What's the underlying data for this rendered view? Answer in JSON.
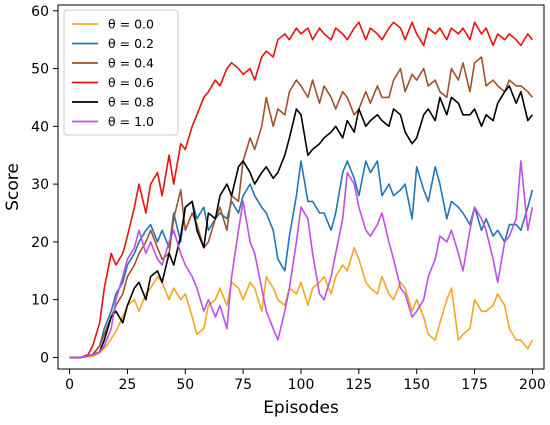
{
  "chart_data": {
    "type": "line",
    "title": "",
    "xlabel": "Episodes",
    "ylabel": "Score",
    "xlim": [
      -5,
      205
    ],
    "ylim": [
      -2,
      61
    ],
    "xticks": [
      0,
      25,
      50,
      75,
      100,
      125,
      150,
      175,
      200
    ],
    "yticks": [
      0,
      10,
      20,
      30,
      40,
      50,
      60
    ],
    "grid": false,
    "legend_position": "top-left",
    "series": [
      {
        "name": "θ = 0.0",
        "color": "#f5a623",
        "x": [
          0,
          5,
          10,
          13,
          16,
          20,
          23,
          25,
          28,
          30,
          33,
          35,
          38,
          40,
          43,
          45,
          48,
          50,
          53,
          55,
          58,
          60,
          63,
          65,
          68,
          70,
          73,
          75,
          78,
          80,
          83,
          85,
          88,
          90,
          93,
          95,
          98,
          100,
          103,
          105,
          108,
          110,
          113,
          115,
          118,
          120,
          123,
          125,
          128,
          130,
          133,
          135,
          138,
          140,
          143,
          145,
          148,
          150,
          153,
          155,
          158,
          160,
          163,
          165,
          168,
          170,
          173,
          175,
          178,
          180,
          183,
          185,
          188,
          190,
          193,
          195,
          198,
          200
        ],
        "y": [
          0,
          0,
          0.2,
          0.8,
          2,
          4.5,
          7,
          9,
          10,
          8,
          11,
          12,
          14,
          13,
          10,
          12,
          10,
          11,
          7,
          4,
          5,
          9,
          10,
          12,
          9,
          13,
          12,
          10,
          13,
          12,
          8,
          14,
          12,
          10,
          9,
          12,
          11,
          13,
          9,
          12,
          13,
          14,
          11,
          14,
          16,
          15,
          19,
          17,
          13,
          12,
          11,
          14,
          11,
          10,
          13,
          12,
          8,
          10,
          7,
          4,
          3,
          6,
          10,
          12,
          3,
          4,
          5,
          10,
          8,
          8,
          9,
          11,
          9,
          5,
          3,
          3,
          1.5,
          3
        ]
      },
      {
        "name": "θ = 0.2",
        "color": "#1f77b4",
        "x": [
          0,
          5,
          10,
          13,
          15,
          18,
          20,
          23,
          25,
          28,
          30,
          33,
          35,
          38,
          40,
          43,
          45,
          48,
          50,
          53,
          55,
          58,
          60,
          63,
          65,
          68,
          70,
          73,
          75,
          78,
          80,
          83,
          85,
          88,
          90,
          93,
          95,
          98,
          100,
          103,
          105,
          108,
          110,
          113,
          115,
          118,
          120,
          123,
          125,
          128,
          130,
          133,
          135,
          138,
          140,
          143,
          145,
          148,
          150,
          153,
          155,
          158,
          160,
          163,
          165,
          168,
          170,
          173,
          175,
          178,
          180,
          183,
          185,
          188,
          190,
          193,
          195,
          198,
          200
        ],
        "y": [
          0,
          0,
          0.5,
          2,
          5,
          8,
          11,
          13,
          16,
          18,
          20,
          22,
          23,
          20,
          22,
          19,
          25,
          20,
          26,
          27,
          24,
          26,
          22,
          24,
          25,
          24,
          27,
          25,
          28,
          30,
          28,
          26,
          25,
          22,
          17,
          15,
          21,
          28,
          34,
          27,
          27,
          25,
          25,
          22,
          25,
          32,
          34,
          31,
          28,
          34,
          32,
          34,
          28,
          30,
          28,
          29,
          30,
          24,
          33,
          29,
          27,
          33,
          30,
          24,
          27,
          26,
          25,
          23,
          26,
          22,
          24,
          21,
          22,
          20,
          23,
          23,
          22,
          26,
          29
        ]
      },
      {
        "name": "θ = 0.4",
        "color": "#a0522d",
        "x": [
          0,
          5,
          10,
          13,
          15,
          18,
          20,
          23,
          25,
          28,
          30,
          33,
          35,
          38,
          40,
          43,
          45,
          48,
          50,
          53,
          55,
          58,
          60,
          63,
          65,
          68,
          70,
          73,
          75,
          78,
          80,
          83,
          85,
          88,
          90,
          93,
          95,
          98,
          100,
          103,
          105,
          108,
          110,
          113,
          115,
          118,
          120,
          123,
          125,
          128,
          130,
          133,
          135,
          138,
          140,
          143,
          145,
          148,
          150,
          153,
          155,
          158,
          160,
          163,
          165,
          168,
          170,
          173,
          175,
          178,
          180,
          183,
          185,
          188,
          190,
          193,
          195,
          198,
          200
        ],
        "y": [
          0,
          0,
          0.5,
          2,
          4,
          7,
          9,
          11,
          14,
          16,
          18,
          20,
          22,
          19,
          17,
          18,
          24,
          29,
          22,
          25,
          23,
          19,
          20,
          24,
          26,
          22,
          28,
          27,
          34,
          38,
          36,
          40,
          45,
          40,
          43,
          42,
          46,
          48,
          47,
          45,
          48,
          44,
          47,
          45,
          43,
          46,
          45,
          42,
          43,
          46,
          44,
          47,
          45,
          45,
          48,
          50,
          46,
          49,
          48,
          50,
          47,
          48,
          46,
          45,
          50,
          48,
          51,
          46,
          51,
          52,
          47,
          48,
          47,
          46,
          48,
          47,
          47,
          46,
          45
        ]
      },
      {
        "name": "θ = 0.6",
        "color": "#e8130f",
        "x": [
          0,
          5,
          8,
          10,
          13,
          15,
          18,
          20,
          23,
          25,
          28,
          30,
          33,
          35,
          38,
          40,
          43,
          45,
          48,
          50,
          53,
          55,
          58,
          60,
          63,
          65,
          68,
          70,
          73,
          75,
          78,
          80,
          83,
          85,
          88,
          90,
          93,
          95,
          98,
          100,
          103,
          105,
          108,
          110,
          113,
          115,
          118,
          120,
          123,
          125,
          128,
          130,
          133,
          135,
          138,
          140,
          143,
          145,
          148,
          150,
          153,
          155,
          158,
          160,
          163,
          165,
          168,
          170,
          173,
          175,
          178,
          180,
          183,
          185,
          188,
          190,
          193,
          195,
          198,
          200
        ],
        "y": [
          0,
          0,
          0.5,
          2,
          6,
          12,
          18,
          16,
          18,
          21,
          26,
          30,
          25,
          30,
          32,
          28,
          35,
          30,
          37,
          36,
          40,
          42,
          45,
          46,
          48,
          47,
          50,
          51,
          50,
          49,
          50,
          48,
          52,
          53,
          52,
          55,
          56,
          55,
          57,
          56,
          57,
          55,
          57,
          56,
          55,
          57,
          56,
          55,
          57,
          58,
          55,
          57,
          56,
          55,
          57,
          58,
          57,
          55,
          58,
          56,
          54,
          57,
          56,
          57,
          55,
          57,
          56,
          57,
          55,
          58,
          56,
          57,
          54,
          56,
          55,
          56,
          55,
          54,
          56,
          55
        ]
      },
      {
        "name": "θ = 0.8",
        "color": "#000000",
        "x": [
          0,
          5,
          10,
          13,
          15,
          18,
          20,
          23,
          25,
          28,
          30,
          33,
          35,
          38,
          40,
          43,
          45,
          48,
          50,
          53,
          55,
          58,
          60,
          63,
          65,
          68,
          70,
          73,
          75,
          78,
          80,
          83,
          85,
          88,
          90,
          93,
          95,
          98,
          100,
          103,
          105,
          108,
          110,
          113,
          115,
          118,
          120,
          123,
          125,
          128,
          130,
          133,
          135,
          138,
          140,
          143,
          145,
          148,
          150,
          153,
          155,
          158,
          160,
          163,
          165,
          168,
          170,
          173,
          175,
          178,
          180,
          183,
          185,
          188,
          190,
          193,
          195,
          198,
          200
        ],
        "y": [
          0,
          0,
          0.5,
          1,
          3,
          7,
          8,
          6,
          9,
          12,
          13,
          10,
          14,
          15,
          13,
          18,
          16,
          21,
          26,
          27,
          22,
          19,
          25,
          24,
          28,
          30,
          28,
          33,
          34,
          32,
          30,
          32,
          33,
          31,
          32,
          35,
          38,
          43,
          42,
          35,
          36,
          37,
          38,
          39,
          40,
          38,
          41,
          39,
          43,
          40,
          41,
          42,
          41,
          40,
          43,
          42,
          39,
          37,
          38,
          42,
          43,
          41,
          45,
          42,
          45,
          44,
          42,
          42,
          43,
          40,
          42,
          41,
          44,
          46,
          47,
          44,
          46,
          41,
          42
        ]
      },
      {
        "name": "θ = 1.0",
        "color": "#c14ee8",
        "x": [
          0,
          5,
          10,
          13,
          15,
          18,
          20,
          23,
          25,
          28,
          30,
          33,
          35,
          38,
          40,
          43,
          45,
          48,
          50,
          53,
          55,
          58,
          60,
          63,
          65,
          68,
          70,
          73,
          75,
          78,
          80,
          83,
          85,
          88,
          90,
          93,
          95,
          98,
          100,
          103,
          105,
          108,
          110,
          113,
          115,
          118,
          120,
          123,
          125,
          128,
          130,
          133,
          135,
          138,
          140,
          143,
          145,
          148,
          150,
          153,
          155,
          158,
          160,
          163,
          165,
          168,
          170,
          173,
          175,
          178,
          180,
          183,
          185,
          188,
          190,
          193,
          195,
          198,
          200
        ],
        "y": [
          0,
          0,
          0.5,
          1,
          2,
          5,
          10,
          14,
          17,
          19,
          22,
          18,
          20,
          17,
          16,
          20,
          22,
          18,
          16,
          14,
          12,
          8,
          10,
          7,
          9,
          5,
          14,
          22,
          27,
          20,
          18,
          12,
          8,
          5,
          3,
          8,
          12,
          20,
          26,
          24,
          18,
          11,
          10,
          14,
          18,
          24,
          32,
          30,
          26,
          22,
          21,
          23,
          25,
          20,
          17,
          12,
          11,
          7,
          8,
          10,
          14,
          17,
          21,
          20,
          22,
          18,
          15,
          22,
          26,
          24,
          22,
          17,
          13,
          20,
          21,
          24,
          34,
          22,
          26
        ]
      }
    ]
  }
}
